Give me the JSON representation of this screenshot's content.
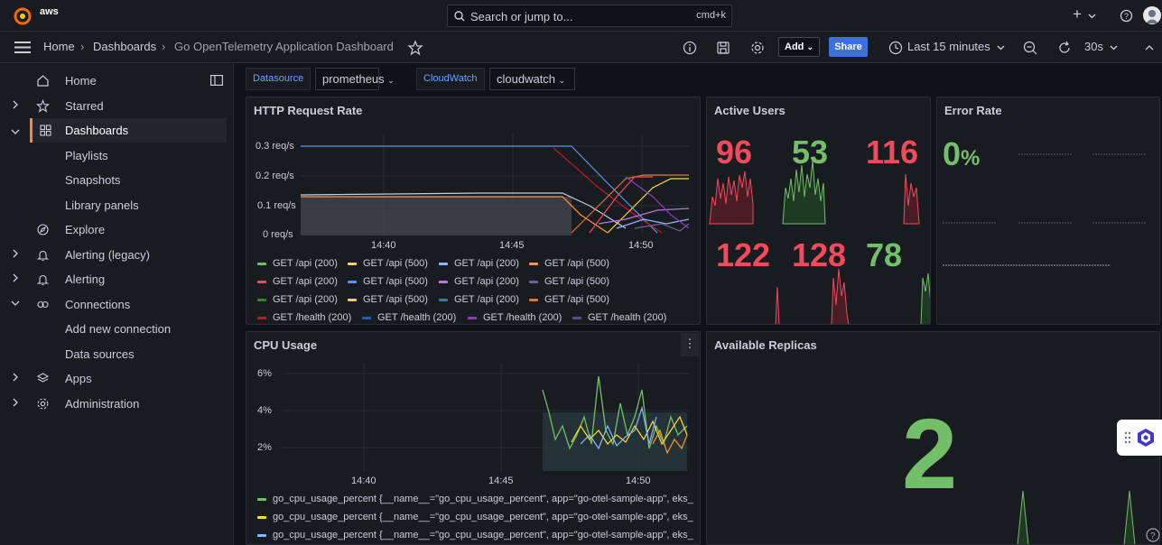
{
  "topbar": {
    "brand": "aws",
    "search_placeholder": "Search or jump to...",
    "search_shortcut": "cmd+k",
    "plus_label": "+"
  },
  "breadcrumb": {
    "items": [
      "Home",
      "Dashboards",
      "Go OpenTelemetry Application Dashboard"
    ]
  },
  "toolbar": {
    "add_label": "Add",
    "share_label": "Share",
    "time_range": "Last 15 minutes",
    "refresh_interval": "30s"
  },
  "sidebar": {
    "items": [
      {
        "label": "Home"
      },
      {
        "label": "Starred"
      },
      {
        "label": "Dashboards"
      },
      {
        "label": "Playlists"
      },
      {
        "label": "Snapshots"
      },
      {
        "label": "Library panels"
      },
      {
        "label": "Explore"
      },
      {
        "label": "Alerting (legacy)"
      },
      {
        "label": "Alerting"
      },
      {
        "label": "Connections"
      },
      {
        "label": "Add new connection"
      },
      {
        "label": "Data sources"
      },
      {
        "label": "Apps"
      },
      {
        "label": "Administration"
      }
    ]
  },
  "variables": {
    "datasource_label": "Datasource",
    "datasource_value": "prometheus",
    "cloudwatch_label": "CloudWatch",
    "cloudwatch_value": "cloudwatch"
  },
  "panels": {
    "http": {
      "title": "HTTP Request Rate",
      "y_ticks": [
        "0.3 req/s",
        "0.2 req/s",
        "0.1 req/s",
        "0 req/s"
      ],
      "x_ticks": [
        "14:40",
        "14:45",
        "14:50"
      ],
      "legend": [
        {
          "label": "GET /api (200)",
          "color": "#73bf69"
        },
        {
          "label": "GET /api (500)",
          "color": "#fade2a"
        },
        {
          "label": "GET /api (200)",
          "color": "#8ab8ff"
        },
        {
          "label": "GET /api (500)",
          "color": "#ff9830"
        },
        {
          "label": "GET /api (200)",
          "color": "#f2495c"
        },
        {
          "label": "GET /api (500)",
          "color": "#5794f2"
        },
        {
          "label": "GET /api (200)",
          "color": "#b877d9"
        },
        {
          "label": "GET /api (500)",
          "color": "#705da0"
        },
        {
          "label": "GET /api (200)",
          "color": "#37872d"
        },
        {
          "label": "GET /api (500)",
          "color": "#f5d340"
        },
        {
          "label": "GET /api (200)",
          "color": "#3274d9"
        },
        {
          "label": "GET /api (500)",
          "color": "#e0752d"
        },
        {
          "label": "GET /health (200)",
          "color": "#c4162a"
        },
        {
          "label": "GET /health (200)",
          "color": "#1f60c4"
        },
        {
          "label": "GET /health (200)",
          "color": "#8f3bb8"
        },
        {
          "label": "GET /health (200)",
          "color": "#584e8c"
        }
      ]
    },
    "active_users": {
      "title": "Active Users",
      "values": [
        {
          "value": "96",
          "color": "#f2495c"
        },
        {
          "value": "53",
          "color": "#73bf69"
        },
        {
          "value": "116",
          "color": "#f2495c"
        },
        {
          "value": "122",
          "color": "#f2495c"
        },
        {
          "value": "128",
          "color": "#f2495c"
        },
        {
          "value": "78",
          "color": "#73bf69"
        }
      ]
    },
    "error_rate": {
      "title": "Error Rate",
      "value": "0",
      "unit": "%",
      "color": "#73bf69"
    },
    "cpu": {
      "title": "CPU Usage",
      "y_ticks": [
        "6%",
        "4%",
        "2%"
      ],
      "x_ticks": [
        "14:40",
        "14:45",
        "14:50"
      ],
      "legend": [
        {
          "label": "go_cpu_usage_percent {__name__=\"go_cpu_usage_percent\", app=\"go-otel-sample-app\", eks_",
          "color": "#73bf69"
        },
        {
          "label": "go_cpu_usage_percent {__name__=\"go_cpu_usage_percent\", app=\"go-otel-sample-app\", eks_",
          "color": "#fade2a"
        },
        {
          "label": "go_cpu_usage_percent {__name__=\"go_cpu_usage_percent\", app=\"go-otel-sample-app\", eks_",
          "color": "#8ab8ff"
        }
      ]
    },
    "replicas": {
      "title": "Available Replicas",
      "value": "2",
      "color": "#73bf69"
    }
  }
}
